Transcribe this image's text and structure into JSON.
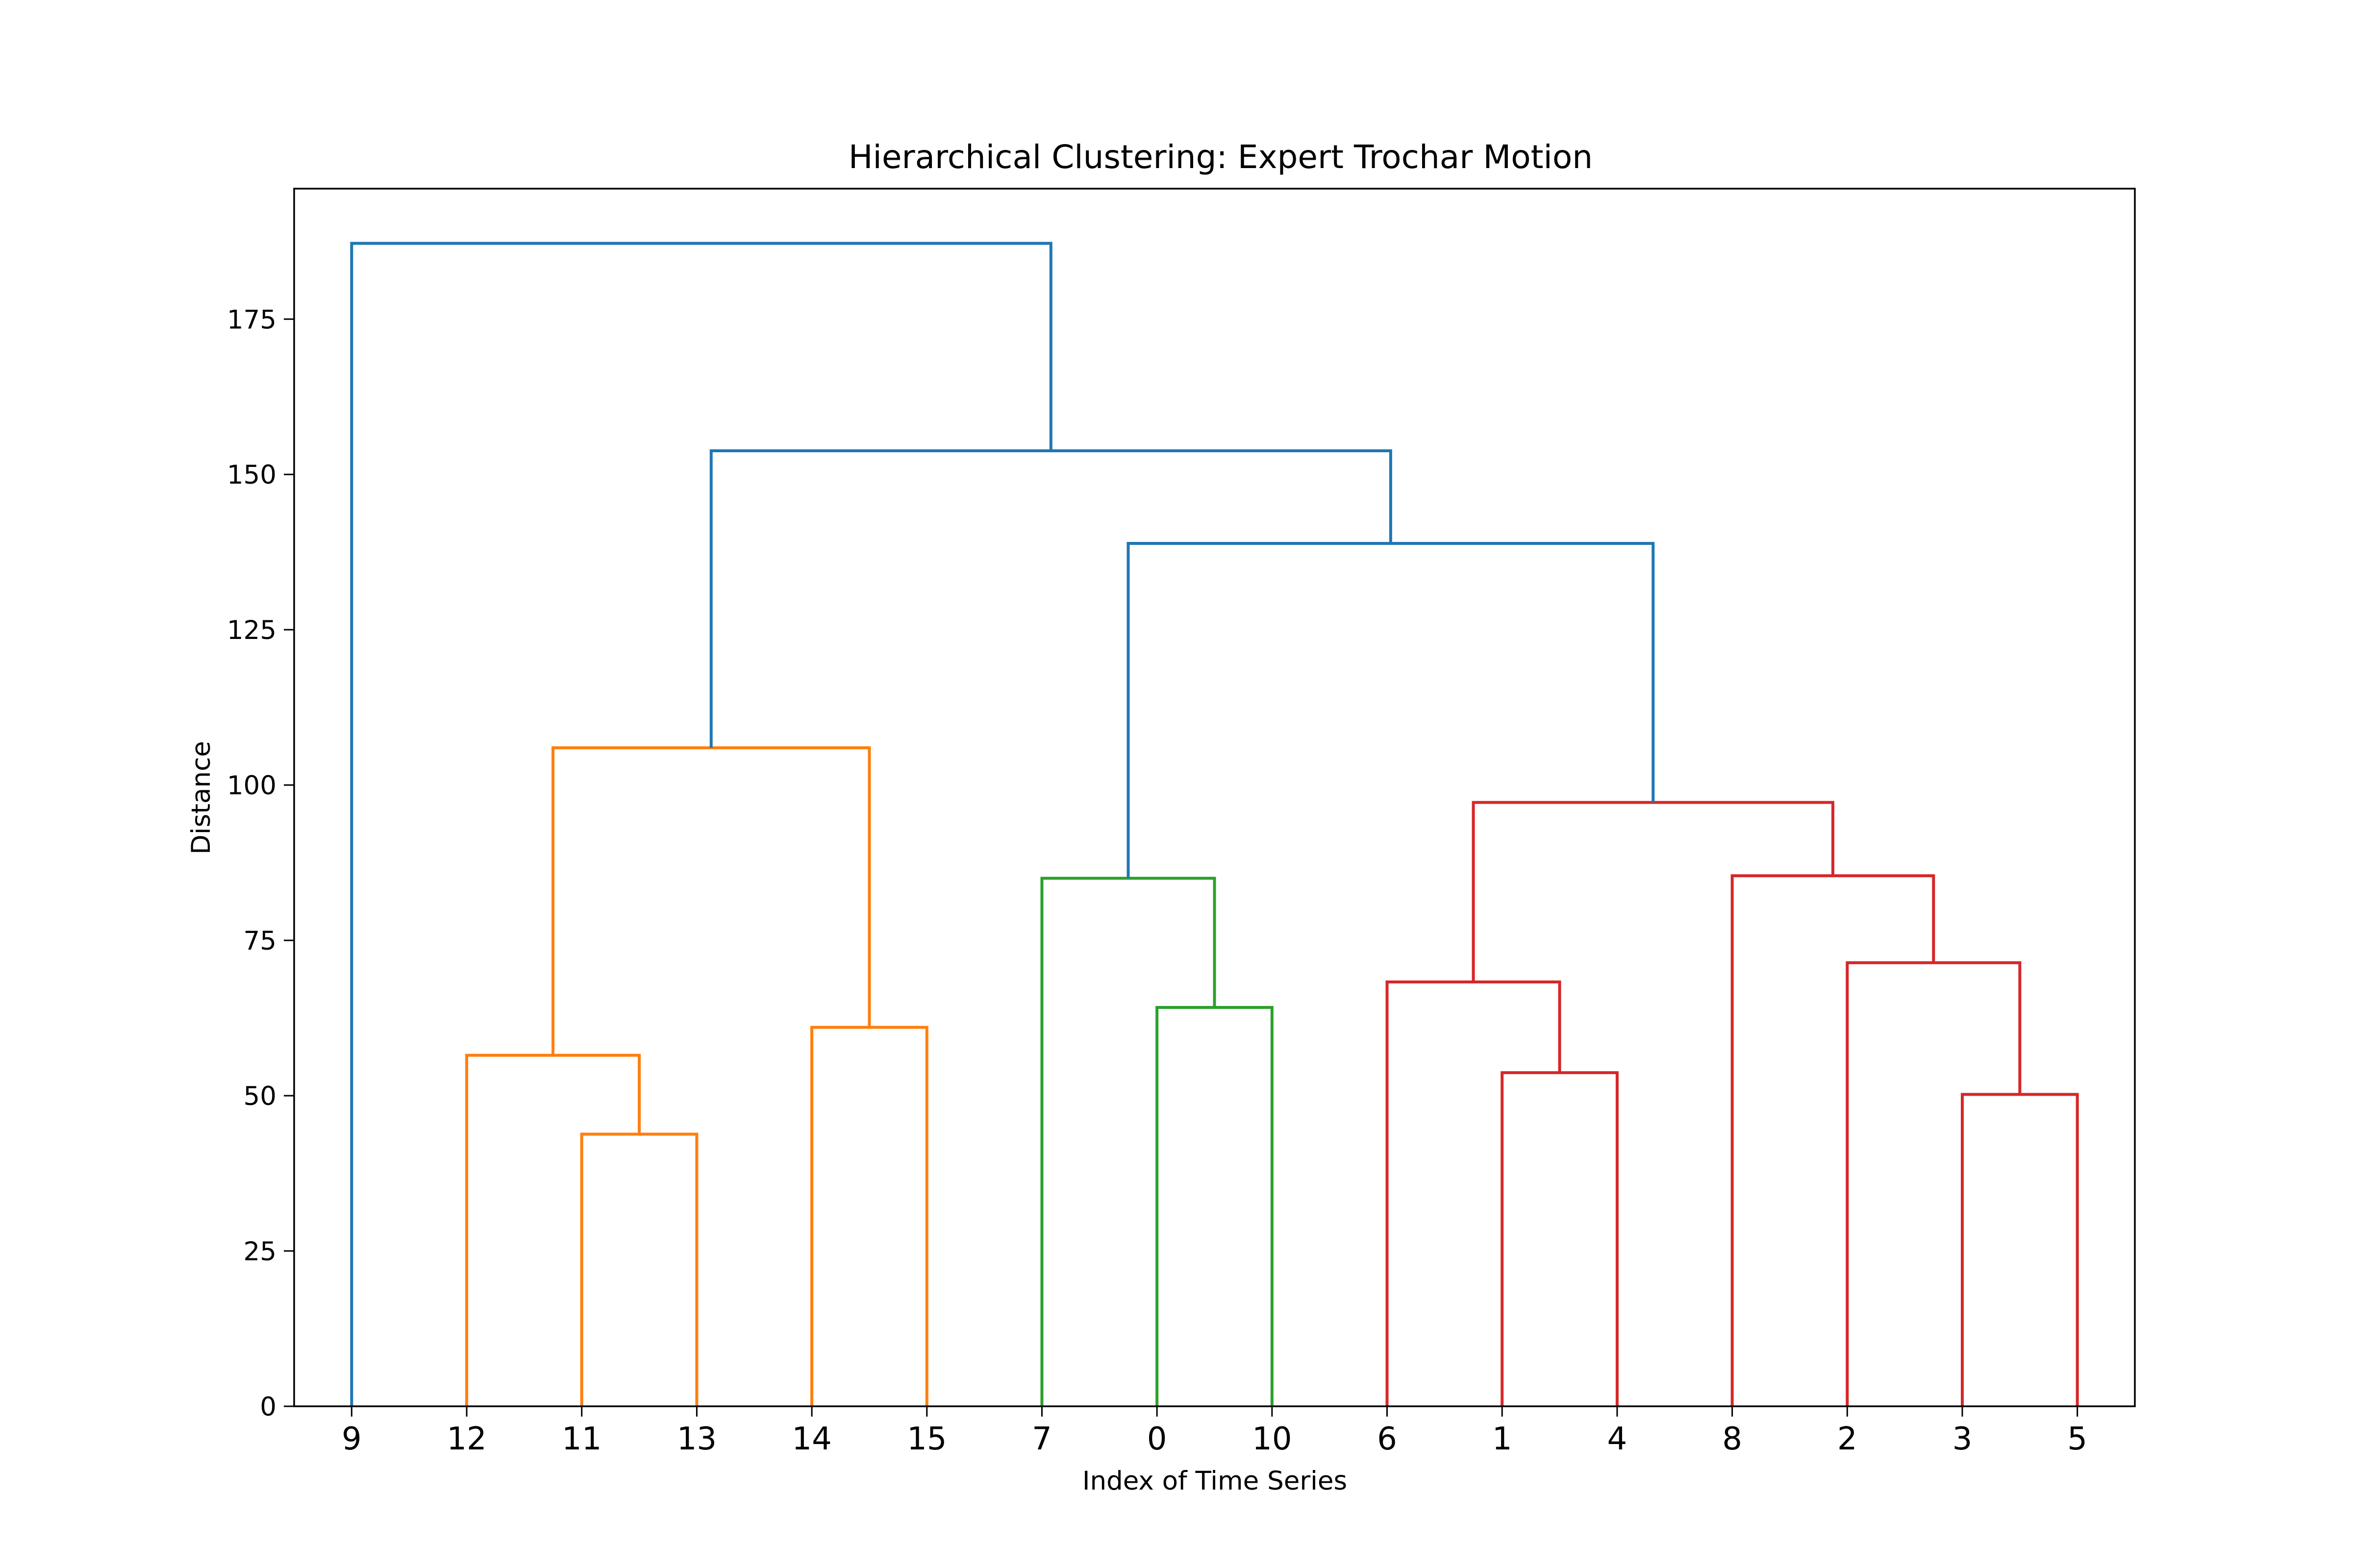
{
  "chart_data": {
    "type": "dendrogram",
    "title": "Hierarchical Clustering: Expert Trochar Motion",
    "xlabel": "Index of Time Series",
    "ylabel": "Distance",
    "ylim": [
      0,
      196
    ],
    "yticks": [
      0,
      25,
      50,
      75,
      100,
      125,
      150,
      175
    ],
    "grid": false,
    "leaf_order": [
      "9",
      "12",
      "11",
      "13",
      "14",
      "15",
      "7",
      "0",
      "10",
      "6",
      "1",
      "4",
      "8",
      "2",
      "3",
      "5"
    ],
    "colors": {
      "above_threshold": "#1f77b4",
      "cluster_1": "#ff7f0e",
      "cluster_2": "#2ca02c",
      "cluster_3": "#d62728"
    },
    "merges": [
      {
        "left": [
          "11"
        ],
        "right": [
          "13"
        ],
        "height": 43.8,
        "color": "cluster_1"
      },
      {
        "left": [
          "12"
        ],
        "right": [
          "11",
          "13"
        ],
        "height": 56.5,
        "color": "cluster_1"
      },
      {
        "left": [
          "14"
        ],
        "right": [
          "15"
        ],
        "height": 61.0,
        "color": "cluster_1"
      },
      {
        "left": [
          "12",
          "11",
          "13"
        ],
        "right": [
          "14",
          "15"
        ],
        "height": 106.0,
        "color": "cluster_1"
      },
      {
        "left": [
          "0"
        ],
        "right": [
          "10"
        ],
        "height": 64.2,
        "color": "cluster_2"
      },
      {
        "left": [
          "7"
        ],
        "right": [
          "0",
          "10"
        ],
        "height": 85.0,
        "color": "cluster_2"
      },
      {
        "left": [
          "1"
        ],
        "right": [
          "4"
        ],
        "height": 53.7,
        "color": "cluster_3"
      },
      {
        "left": [
          "6"
        ],
        "right": [
          "1",
          "4"
        ],
        "height": 68.3,
        "color": "cluster_3"
      },
      {
        "left": [
          "3"
        ],
        "right": [
          "5"
        ],
        "height": 50.2,
        "color": "cluster_3"
      },
      {
        "left": [
          "2"
        ],
        "right": [
          "3",
          "5"
        ],
        "height": 71.4,
        "color": "cluster_3"
      },
      {
        "left": [
          "8"
        ],
        "right": [
          "2",
          "3",
          "5"
        ],
        "height": 85.4,
        "color": "cluster_3"
      },
      {
        "left": [
          "6",
          "1",
          "4"
        ],
        "right": [
          "8",
          "2",
          "3",
          "5"
        ],
        "height": 97.2,
        "color": "cluster_3"
      },
      {
        "left": [
          "7",
          "0",
          "10"
        ],
        "right": [
          "6",
          "1",
          "4",
          "8",
          "2",
          "3",
          "5"
        ],
        "height": 138.9,
        "color": "above_threshold"
      },
      {
        "left": [
          "12",
          "11",
          "13",
          "14",
          "15"
        ],
        "right": [
          "7",
          "0",
          "10",
          "6",
          "1",
          "4",
          "8",
          "2",
          "3",
          "5"
        ],
        "height": 153.8,
        "color": "above_threshold"
      },
      {
        "left": [
          "9"
        ],
        "right": [
          "12",
          "11",
          "13",
          "14",
          "15",
          "7",
          "0",
          "10",
          "6",
          "1",
          "4",
          "8",
          "2",
          "3",
          "5"
        ],
        "height": 187.2,
        "color": "above_threshold"
      }
    ]
  }
}
